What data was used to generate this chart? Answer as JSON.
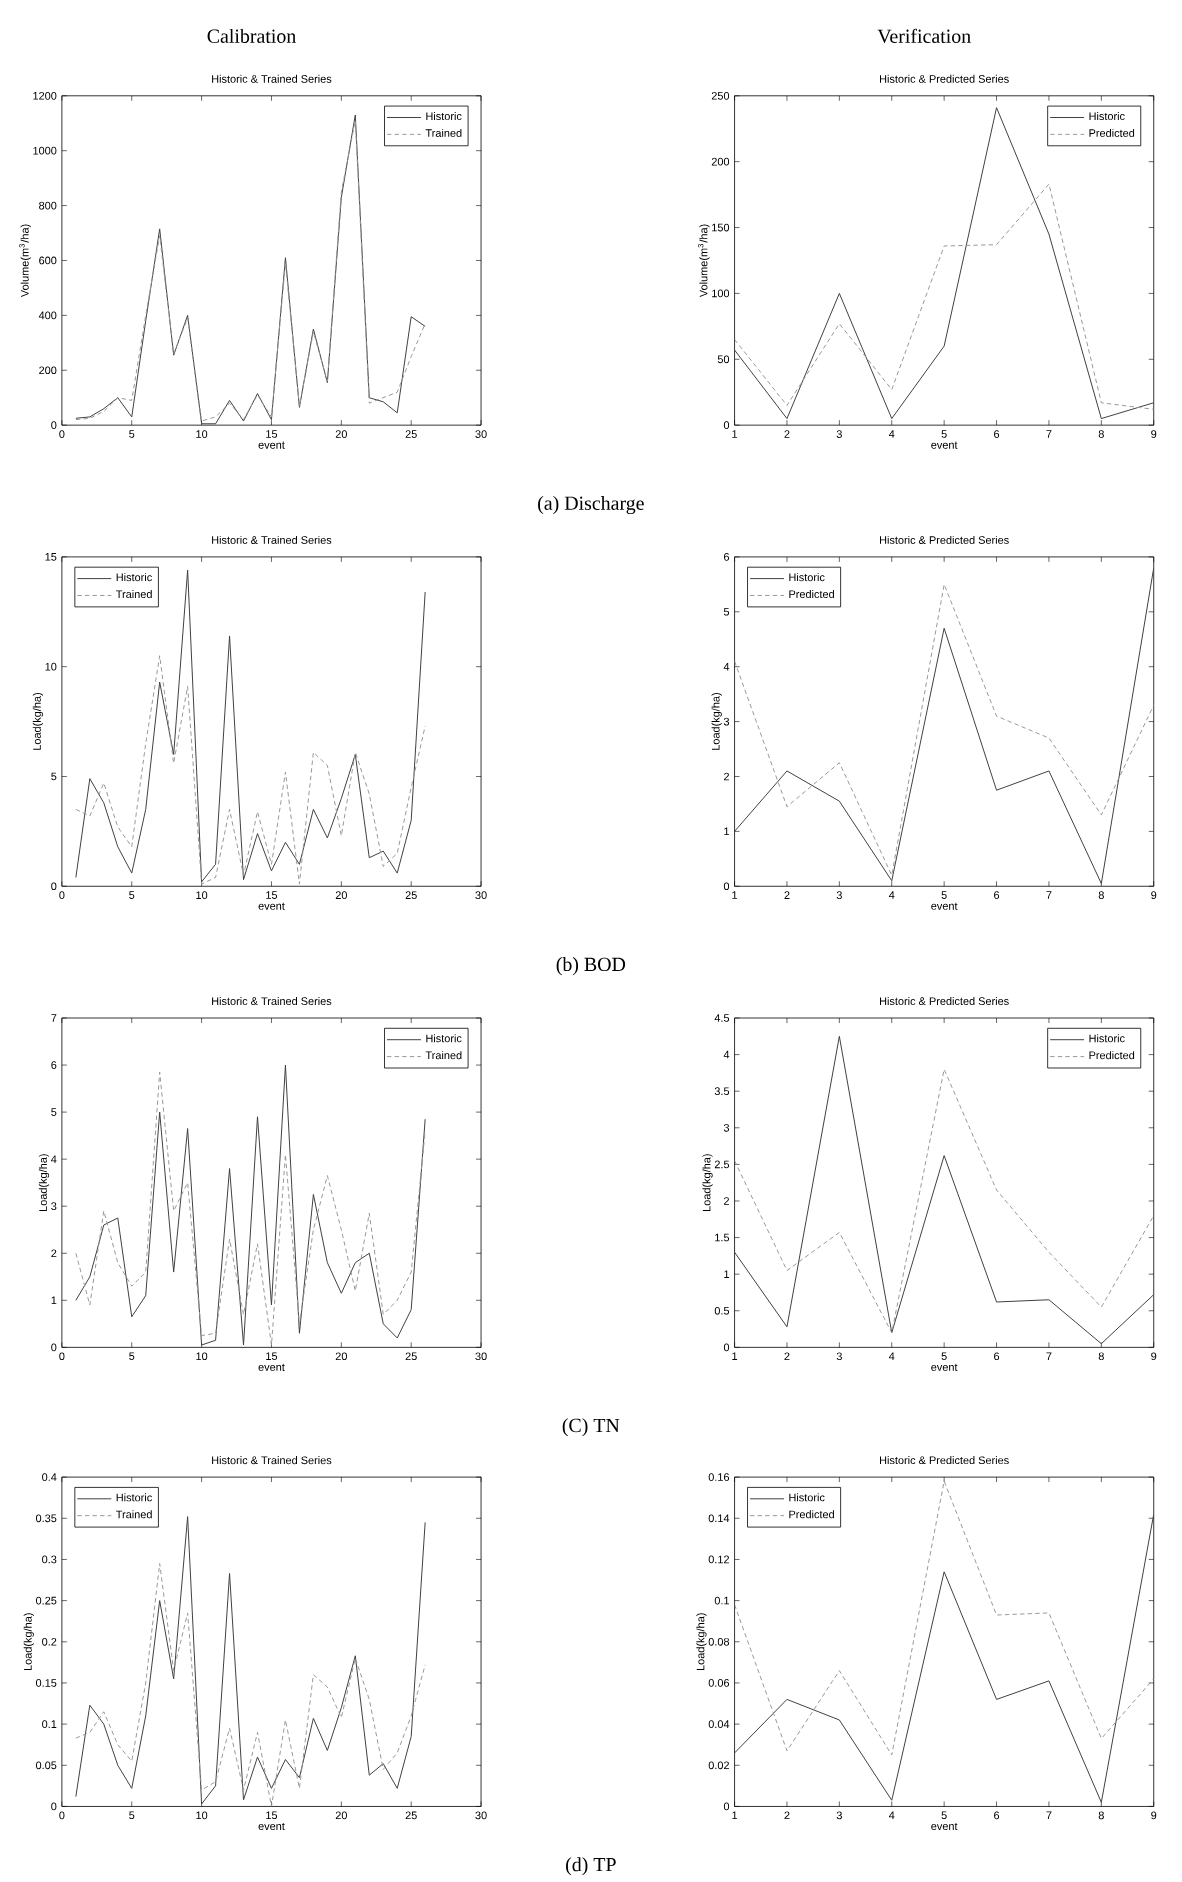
{
  "chart_data": [
    {
      "type": "line",
      "title": "Historic & Trained Series",
      "xlabel": "event",
      "ylabel": "Volume(m$^{3}$/ha)",
      "annotations": [
        "Calibration",
        "(a) Discharge"
      ],
      "xlim": [
        0,
        30
      ],
      "xticks": [
        0,
        5,
        10,
        15,
        20,
        25,
        30
      ],
      "ylim": [
        0,
        1200
      ],
      "yticks": [
        0,
        200,
        400,
        600,
        800,
        1000,
        1200
      ],
      "legend": "top right",
      "series": [
        {
          "name": "Historic",
          "color": "#404040",
          "line_style": "solid",
          "x": [
            1,
            2,
            3,
            4,
            5,
            6,
            7,
            8,
            9,
            10,
            11,
            12,
            13,
            14,
            15,
            16,
            17,
            18,
            19,
            20,
            21,
            22,
            23,
            24,
            25,
            26
          ],
          "values": [
            25,
            30,
            60,
            100,
            30,
            380,
            715,
            255,
            400,
            5,
            5,
            90,
            15,
            115,
            20,
            610,
            65,
            350,
            155,
            830,
            1130,
            100,
            85,
            45,
            395,
            360
          ]
        },
        {
          "name": "Trained",
          "color": "#999999",
          "line_style": "dashed",
          "x": [
            1,
            2,
            3,
            4,
            5,
            6,
            7,
            8,
            9,
            10,
            11,
            12,
            13,
            14,
            15,
            16,
            17,
            18,
            19,
            20,
            21,
            22,
            23,
            24,
            25,
            26
          ],
          "values": [
            20,
            25,
            50,
            100,
            90,
            400,
            690,
            260,
            390,
            15,
            30,
            80,
            20,
            110,
            30,
            590,
            70,
            340,
            160,
            850,
            1110,
            80,
            100,
            120,
            250,
            370
          ]
        }
      ]
    },
    {
      "type": "line",
      "title": "Historic & Predicted Series",
      "xlabel": "event",
      "ylabel": "Volume(m$^{3}$/ha)",
      "annotations": [
        "Verification"
      ],
      "xlim": [
        1,
        9
      ],
      "xticks": [
        1,
        2,
        3,
        4,
        5,
        6,
        7,
        8,
        9
      ],
      "ylim": [
        0,
        250
      ],
      "yticks": [
        0,
        50,
        100,
        150,
        200,
        250
      ],
      "legend": "top right",
      "series": [
        {
          "name": "Historic",
          "color": "#404040",
          "line_style": "solid",
          "x": [
            1,
            2,
            3,
            4,
            5,
            6,
            7,
            8,
            9
          ],
          "values": [
            57,
            5,
            100,
            5,
            60,
            241,
            145,
            5,
            17
          ]
        },
        {
          "name": "Predicted",
          "color": "#999999",
          "line_style": "dashed",
          "x": [
            1,
            2,
            3,
            4,
            5,
            6,
            7,
            8,
            9
          ],
          "values": [
            65,
            15,
            77,
            27,
            136,
            137,
            183,
            17,
            12
          ]
        }
      ]
    },
    {
      "type": "line",
      "title": "Historic & Trained Series",
      "xlabel": "event",
      "ylabel": "Load(kg/ha)",
      "annotations": [
        "(b) BOD"
      ],
      "xlim": [
        0,
        30
      ],
      "xticks": [
        0,
        5,
        10,
        15,
        20,
        25,
        30
      ],
      "ylim": [
        0,
        15
      ],
      "yticks": [
        0,
        5,
        10,
        15
      ],
      "legend": "top left",
      "series": [
        {
          "name": "Historic",
          "color": "#404040",
          "line_style": "solid",
          "x": [
            1,
            2,
            3,
            4,
            5,
            6,
            7,
            8,
            9,
            10,
            11,
            12,
            13,
            14,
            15,
            16,
            17,
            18,
            19,
            20,
            21,
            22,
            23,
            24,
            25,
            26
          ],
          "values": [
            0.4,
            4.9,
            3.8,
            1.8,
            0.6,
            3.5,
            9.3,
            6.0,
            14.4,
            0.2,
            1.0,
            11.4,
            0.3,
            2.4,
            0.7,
            2.0,
            1.0,
            3.5,
            2.2,
            4.0,
            6.0,
            1.3,
            1.6,
            0.6,
            3.0,
            13.4
          ]
        },
        {
          "name": "Trained",
          "color": "#999999",
          "line_style": "dashed",
          "x": [
            1,
            2,
            3,
            4,
            5,
            6,
            7,
            8,
            9,
            10,
            11,
            12,
            13,
            14,
            15,
            16,
            17,
            18,
            19,
            20,
            21,
            22,
            23,
            24,
            25,
            26
          ],
          "values": [
            3.5,
            3.2,
            4.7,
            2.7,
            1.8,
            6.5,
            10.5,
            5.6,
            9.1,
            0.1,
            0.4,
            3.5,
            0.5,
            3.4,
            1.0,
            5.2,
            0.1,
            6.1,
            5.5,
            2.3,
            6.1,
            4.2,
            0.9,
            1.5,
            4.5,
            7.3
          ]
        }
      ]
    },
    {
      "type": "line",
      "title": "Historic & Predicted Series",
      "xlabel": "event",
      "ylabel": "Load(kg/ha)",
      "xlim": [
        1,
        9
      ],
      "xticks": [
        1,
        2,
        3,
        4,
        5,
        6,
        7,
        8,
        9
      ],
      "ylim": [
        0,
        6
      ],
      "yticks": [
        0,
        1,
        2,
        3,
        4,
        5,
        6
      ],
      "legend": "top left",
      "series": [
        {
          "name": "Historic",
          "color": "#404040",
          "line_style": "solid",
          "x": [
            1,
            2,
            3,
            4,
            5,
            6,
            7,
            8,
            9
          ],
          "values": [
            1.0,
            2.1,
            1.55,
            0.1,
            4.7,
            1.75,
            2.1,
            0.05,
            5.8
          ]
        },
        {
          "name": "Predicted",
          "color": "#999999",
          "line_style": "dashed",
          "x": [
            1,
            2,
            3,
            4,
            5,
            6,
            7,
            8,
            9
          ],
          "values": [
            4.1,
            1.45,
            2.25,
            0.2,
            5.5,
            3.1,
            2.7,
            1.3,
            3.3
          ]
        }
      ]
    },
    {
      "type": "line",
      "title": "Historic & Trained Series",
      "xlabel": "event",
      "ylabel": "Load(kg/ha)",
      "annotations": [
        "(C) TN"
      ],
      "xlim": [
        0,
        30
      ],
      "xticks": [
        0,
        5,
        10,
        15,
        20,
        25,
        30
      ],
      "ylim": [
        0,
        7
      ],
      "yticks": [
        0,
        1,
        2,
        3,
        4,
        5,
        6,
        7
      ],
      "legend": "top right",
      "series": [
        {
          "name": "Historic",
          "color": "#404040",
          "line_style": "solid",
          "x": [
            1,
            2,
            3,
            4,
            5,
            6,
            7,
            8,
            9,
            10,
            11,
            12,
            13,
            14,
            15,
            16,
            17,
            18,
            19,
            20,
            21,
            22,
            23,
            24,
            25,
            26
          ],
          "values": [
            1.0,
            1.5,
            2.6,
            2.75,
            0.65,
            1.1,
            5.0,
            1.6,
            4.65,
            0.05,
            0.15,
            3.8,
            0.05,
            4.9,
            0.9,
            6.0,
            0.3,
            3.25,
            1.8,
            1.15,
            1.8,
            2.0,
            0.5,
            0.2,
            0.8,
            4.85
          ]
        },
        {
          "name": "Trained",
          "color": "#999999",
          "line_style": "dashed",
          "x": [
            1,
            2,
            3,
            4,
            5,
            6,
            7,
            8,
            9,
            10,
            11,
            12,
            13,
            14,
            15,
            16,
            17,
            18,
            19,
            20,
            21,
            22,
            23,
            24,
            25,
            26
          ],
          "values": [
            2.0,
            0.9,
            2.9,
            1.8,
            1.3,
            1.6,
            5.85,
            2.9,
            3.5,
            0.25,
            0.3,
            2.3,
            0.7,
            2.2,
            0.05,
            4.1,
            0.5,
            2.5,
            3.65,
            2.5,
            1.2,
            2.85,
            0.7,
            1.0,
            1.6,
            4.6
          ]
        }
      ]
    },
    {
      "type": "line",
      "title": "Historic & Predicted Series",
      "xlabel": "event",
      "ylabel": "Load(kg/ha)",
      "xlim": [
        1,
        9
      ],
      "xticks": [
        1,
        2,
        3,
        4,
        5,
        6,
        7,
        8,
        9
      ],
      "ylim": [
        0,
        4.5
      ],
      "yticks": [
        0,
        0.5,
        1,
        1.5,
        2,
        2.5,
        3,
        3.5,
        4,
        4.5
      ],
      "legend": "top right",
      "series": [
        {
          "name": "Historic",
          "color": "#404040",
          "line_style": "solid",
          "x": [
            1,
            2,
            3,
            4,
            5,
            6,
            7,
            8,
            9
          ],
          "values": [
            1.3,
            0.28,
            4.25,
            0.2,
            2.62,
            0.62,
            0.65,
            0.05,
            0.72
          ]
        },
        {
          "name": "Predicted",
          "color": "#999999",
          "line_style": "dashed",
          "x": [
            1,
            2,
            3,
            4,
            5,
            6,
            7,
            8,
            9
          ],
          "values": [
            2.55,
            1.05,
            1.57,
            0.2,
            3.8,
            2.15,
            1.3,
            0.55,
            1.8
          ]
        }
      ]
    },
    {
      "type": "line",
      "title": "Historic & Trained Series",
      "xlabel": "event",
      "ylabel": "Load(kg/ha)",
      "annotations": [
        "(d) TP"
      ],
      "xlim": [
        0,
        30
      ],
      "xticks": [
        0,
        5,
        10,
        15,
        20,
        25,
        30
      ],
      "ylim": [
        0,
        0.4
      ],
      "yticks": [
        0,
        0.05,
        0.1,
        0.15,
        0.2,
        0.25,
        0.3,
        0.35,
        0.4
      ],
      "legend": "top left",
      "series": [
        {
          "name": "Historic",
          "color": "#404040",
          "line_style": "solid",
          "x": [
            1,
            2,
            3,
            4,
            5,
            6,
            7,
            8,
            9,
            10,
            11,
            12,
            13,
            14,
            15,
            16,
            17,
            18,
            19,
            20,
            21,
            22,
            23,
            24,
            25,
            26
          ],
          "values": [
            0.012,
            0.123,
            0.1,
            0.05,
            0.022,
            0.11,
            0.25,
            0.155,
            0.352,
            0.003,
            0.025,
            0.283,
            0.008,
            0.06,
            0.022,
            0.057,
            0.035,
            0.107,
            0.068,
            0.12,
            0.183,
            0.038,
            0.052,
            0.022,
            0.085,
            0.345
          ]
        },
        {
          "name": "Trained",
          "color": "#999999",
          "line_style": "dashed",
          "x": [
            1,
            2,
            3,
            4,
            5,
            6,
            7,
            8,
            9,
            10,
            11,
            12,
            13,
            14,
            15,
            16,
            17,
            18,
            19,
            20,
            21,
            22,
            23,
            24,
            25,
            26
          ],
          "values": [
            0.083,
            0.09,
            0.115,
            0.075,
            0.055,
            0.15,
            0.295,
            0.165,
            0.235,
            0.02,
            0.03,
            0.095,
            0.02,
            0.09,
            0.0,
            0.105,
            0.022,
            0.16,
            0.145,
            0.108,
            0.18,
            0.13,
            0.045,
            0.065,
            0.11,
            0.172
          ]
        }
      ]
    },
    {
      "type": "line",
      "title": "Historic & Predicted Series",
      "xlabel": "event",
      "ylabel": "Load(kg/ha)",
      "xlim": [
        1,
        9
      ],
      "xticks": [
        1,
        2,
        3,
        4,
        5,
        6,
        7,
        8,
        9
      ],
      "ylim": [
        0,
        0.16
      ],
      "yticks": [
        0,
        0.02,
        0.04,
        0.06,
        0.08,
        0.1,
        0.12,
        0.14,
        0.16
      ],
      "legend": "top left",
      "series": [
        {
          "name": "Historic",
          "color": "#404040",
          "line_style": "solid",
          "x": [
            1,
            2,
            3,
            4,
            5,
            6,
            7,
            8,
            9
          ],
          "values": [
            0.026,
            0.052,
            0.042,
            0.003,
            0.114,
            0.052,
            0.061,
            0.002,
            0.142
          ]
        },
        {
          "name": "Predicted",
          "color": "#999999",
          "line_style": "dashed",
          "x": [
            1,
            2,
            3,
            4,
            5,
            6,
            7,
            8,
            9
          ],
          "values": [
            0.098,
            0.027,
            0.066,
            0.025,
            0.158,
            0.093,
            0.094,
            0.033,
            0.062
          ]
        }
      ]
    }
  ]
}
